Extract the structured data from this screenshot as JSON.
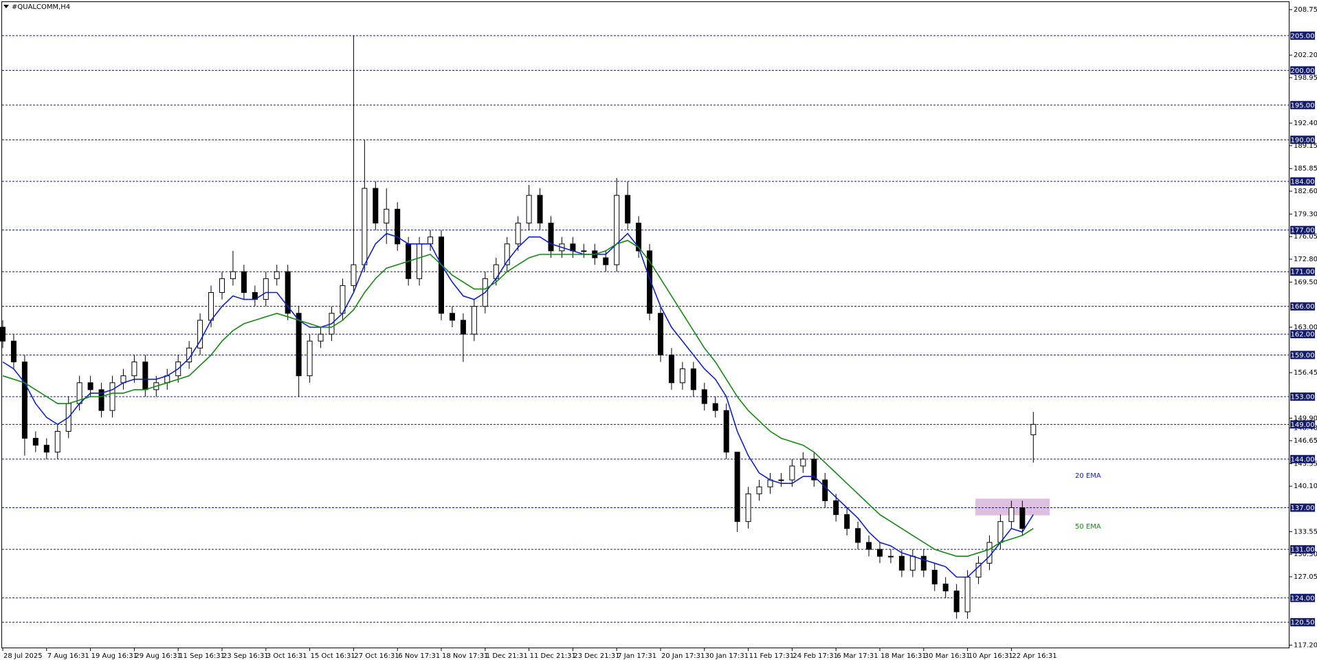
{
  "chart_data": {
    "type": "candlestick",
    "title": "#QUALCOMM,H4",
    "categories": [
      "28 Jul 2025",
      null,
      null,
      null,
      "7 Aug 16:31",
      null,
      null,
      null,
      "19 Aug 16:31",
      null,
      null,
      null,
      "29 Aug 16:31",
      null,
      null,
      null,
      "11 Sep 16:31",
      null,
      null,
      null,
      "23 Sep 16:31",
      null,
      null,
      null,
      "3 Oct 16:31",
      null,
      null,
      null,
      "15 Oct 16:31",
      null,
      null,
      null,
      "27 Oct 16:31",
      null,
      null,
      null,
      "6 Nov 17:31",
      null,
      null,
      null,
      "18 Nov 17:31",
      null,
      null,
      null,
      "1 Dec 21:31",
      null,
      null,
      null,
      "11 Dec 21:31",
      null,
      null,
      null,
      "23 Dec 21:31",
      null,
      null,
      null,
      "7 Jan 17:31",
      null,
      null,
      null,
      "20 Jan 17:31",
      null,
      null,
      null,
      "30 Jan 17:31",
      null,
      null,
      null,
      "11 Feb 17:31",
      null,
      null,
      null,
      "24 Feb 17:31",
      null,
      null,
      null,
      "6 Mar 17:31",
      null,
      null,
      null,
      "18 Mar 16:31",
      null,
      null,
      null,
      "30 Mar 16:31",
      null,
      null,
      null,
      "10 Apr 16:31",
      null,
      null,
      null,
      "22 Apr 16:31",
      null,
      null
    ],
    "open": [
      163,
      161,
      158,
      147,
      146,
      145,
      148,
      152,
      155,
      154,
      151,
      155,
      156,
      158,
      154,
      155,
      156,
      158,
      160,
      164,
      168,
      170,
      171,
      168,
      167,
      170,
      171,
      165,
      156,
      161,
      162,
      165,
      169,
      172,
      183,
      178,
      180,
      175,
      170,
      175,
      176,
      165,
      164,
      162,
      166,
      170,
      172,
      175,
      178,
      182,
      178,
      174,
      175,
      174,
      174,
      173,
      172,
      182,
      178,
      174,
      165,
      159,
      155,
      157,
      154,
      152,
      151,
      145,
      135,
      139,
      140,
      141,
      141,
      143,
      144,
      141,
      138,
      136,
      134,
      132,
      131,
      130,
      130,
      128,
      130,
      128,
      126,
      125,
      122,
      127,
      129,
      132,
      135,
      137,
      147.5
    ],
    "high": [
      164,
      162,
      159,
      148,
      147,
      149,
      153,
      156,
      156,
      155,
      156,
      157,
      159,
      159,
      156,
      157,
      159,
      161,
      165,
      169,
      171,
      174,
      172,
      169,
      171,
      172,
      172,
      166,
      162,
      163,
      166,
      170,
      205,
      190,
      184,
      183,
      181,
      176,
      176,
      177,
      177,
      166,
      165,
      167,
      171,
      173,
      176,
      179,
      183.5,
      183,
      179,
      176,
      176,
      175,
      175,
      174,
      184.5,
      184,
      179,
      175,
      166,
      160,
      158,
      158,
      155,
      153,
      152,
      145,
      140,
      141,
      142,
      142,
      144,
      145,
      145,
      142,
      139,
      137,
      135,
      133,
      132,
      131,
      131,
      131,
      131,
      129,
      127,
      126,
      128,
      130,
      133,
      136,
      138,
      138,
      150.8
    ],
    "low": [
      160,
      157,
      144.5,
      145,
      144,
      144,
      147,
      151,
      153,
      150,
      150,
      154,
      155,
      153,
      153,
      154,
      155,
      157,
      159,
      163,
      167,
      169,
      167,
      166,
      166,
      169,
      164,
      153,
      155,
      160,
      161,
      164,
      168,
      171,
      177,
      175,
      174,
      169,
      169,
      174,
      164,
      163,
      158,
      161,
      165,
      169,
      171,
      174,
      177,
      177,
      173,
      173,
      173,
      173,
      172,
      171,
      171,
      177,
      173,
      164,
      158,
      154,
      154,
      153,
      151,
      150,
      144,
      133.5,
      134,
      138,
      139,
      140,
      140,
      142,
      140,
      137,
      135,
      133,
      131,
      130,
      129,
      129,
      127,
      127,
      127,
      125,
      124,
      121,
      121,
      126,
      128,
      131,
      134,
      133,
      143.5
    ],
    "close": [
      161,
      158,
      147,
      146,
      145,
      148,
      152,
      155,
      154,
      151,
      155,
      156,
      158,
      154,
      155,
      156,
      158,
      160,
      164,
      168,
      170,
      171,
      168,
      167,
      170,
      171,
      165,
      156,
      161,
      162,
      165,
      169,
      172,
      183,
      178,
      180,
      175,
      170,
      175,
      176,
      165,
      164,
      162,
      166,
      170,
      172,
      175,
      178,
      182,
      178,
      174,
      175,
      174,
      174,
      173,
      172,
      182,
      178,
      174,
      165,
      159,
      155,
      157,
      154,
      152,
      151,
      145,
      135,
      139,
      140,
      141,
      141,
      143,
      144,
      141,
      138,
      136,
      134,
      132,
      131,
      130,
      130,
      128,
      130,
      128,
      126,
      125,
      122,
      127,
      129,
      132,
      135,
      137,
      134,
      149
    ],
    "series": [
      {
        "name": "20 EMA",
        "color": "#0a1fd0",
        "values": [
          158,
          157,
          155,
          152,
          150,
          149,
          150,
          152,
          153.5,
          153.5,
          154,
          155,
          155.5,
          155.5,
          155.5,
          156,
          157,
          158.5,
          161,
          164,
          166,
          167.5,
          167,
          167,
          168,
          168,
          166,
          164,
          163,
          163,
          163.5,
          165,
          168,
          172,
          175,
          176.5,
          176,
          175,
          175,
          175,
          172,
          169.5,
          167.5,
          167,
          168,
          170,
          172.5,
          174.5,
          176,
          176,
          175,
          174.5,
          174,
          173.5,
          173.5,
          173.5,
          175,
          176.5,
          174.5,
          170,
          166,
          163,
          161,
          159,
          157,
          155.5,
          153,
          148,
          144.5,
          142,
          141,
          140.5,
          140.5,
          141.5,
          141.5,
          140,
          138.5,
          137,
          135.5,
          133.5,
          132,
          131.5,
          130.5,
          130,
          129.5,
          129,
          128.5,
          127,
          127,
          128.5,
          130,
          132,
          134,
          133.5,
          136
        ]
      },
      {
        "name": "50 EMA",
        "color": "#0f8a0f",
        "values": [
          156,
          155.5,
          155,
          154,
          153,
          152,
          152,
          152.5,
          153,
          153,
          153.5,
          153.5,
          154,
          154,
          154.5,
          155,
          155.5,
          156,
          157.5,
          159,
          161,
          162.5,
          163.5,
          164,
          164.5,
          165,
          164.5,
          164,
          163.5,
          163,
          163,
          164,
          165.5,
          168,
          170,
          171.5,
          172,
          172.5,
          173,
          173.5,
          172,
          170.5,
          169.5,
          168.5,
          168.5,
          169.5,
          171,
          172,
          173,
          173.5,
          173.5,
          173.5,
          173.5,
          173.5,
          173.5,
          174,
          175,
          175.5,
          174.5,
          172.5,
          170,
          167.5,
          165,
          162.5,
          160,
          158,
          155.5,
          153,
          151,
          149.5,
          148,
          147,
          146.5,
          146,
          145,
          143.5,
          142,
          140.5,
          139,
          137.5,
          136,
          135,
          134,
          133,
          132,
          131,
          130.5,
          130,
          130,
          130.5,
          131,
          132,
          132.5,
          133,
          134
        ]
      }
    ],
    "ylim": [
      116.75,
      209.84
    ],
    "yticks": [
      208.75,
      {
        "value": 202.2,
        "label": "202.20"
      },
      198.95,
      {
        "value": 192.4,
        "label": "192.40"
      },
      189.15,
      185.85,
      {
        "value": 182.6,
        "label": "182.60"
      },
      {
        "value": 179.3,
        "label": "179.30"
      },
      176.05,
      {
        "value": 172.8,
        "label": "172.80"
      },
      {
        "value": 169.5,
        "label": "169.50"
      },
      {
        "value": 163,
        "label": "163.00"
      },
      156.45,
      {
        "value": 149.9,
        "label": "149.90"
      },
      148.48,
      146.65,
      143.35,
      {
        "value": 140.1,
        "label": "140.10"
      },
      133.55,
      {
        "value": 130.3,
        "label": "130.30"
      },
      127.05,
      {
        "value": 117.2,
        "label": "117.20"
      }
    ],
    "levels": [
      {
        "value": 205,
        "label": "205.00"
      },
      {
        "value": 200,
        "label": "200.00"
      },
      {
        "value": 195,
        "label": "195.00"
      },
      {
        "value": 190,
        "label": "190.00"
      },
      {
        "value": 184,
        "label": "184.00"
      },
      {
        "value": 177,
        "label": "177.00"
      },
      {
        "value": 171,
        "label": "171.00"
      },
      {
        "value": 166,
        "label": "166.00"
      },
      {
        "value": 162,
        "label": "162.00"
      },
      {
        "value": 159,
        "label": "159.00"
      },
      {
        "value": 153,
        "label": "153.00"
      },
      {
        "value": 149,
        "label": "149.00"
      },
      {
        "value": 144,
        "label": "144.00"
      },
      {
        "value": 137,
        "label": "137.00"
      },
      {
        "value": 131,
        "label": "131.00"
      },
      {
        "value": 124,
        "label": "124.00"
      },
      {
        "value": 120.5,
        "label": "120.50"
      }
    ],
    "level_color": "#141c6e",
    "zone": {
      "low": 135.9,
      "high": 138.3,
      "color": "#d8b4dc"
    },
    "up_color": "#ffffff",
    "down_color": "#000000"
  }
}
